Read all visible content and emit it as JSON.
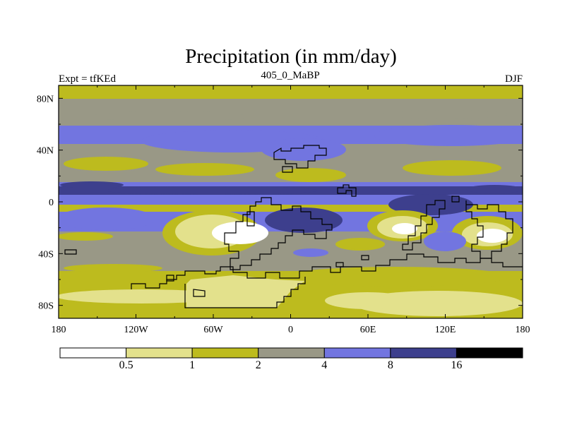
{
  "chart_data": {
    "type": "heatmap",
    "title": "Precipitation (in mm/day)",
    "left_label": "Expt = tfKEd",
    "center_label": "405_0_MaBP",
    "right_label": "DJF",
    "x_axis": {
      "range": [
        -180,
        180
      ],
      "ticks": [
        -180,
        -120,
        -60,
        0,
        60,
        120,
        180
      ],
      "tick_labels": [
        "180",
        "120W",
        "60W",
        "0",
        "60E",
        "120E",
        "180"
      ]
    },
    "y_axis": {
      "range": [
        -90,
        90
      ],
      "ticks": [
        80,
        40,
        0,
        -40,
        -80
      ],
      "tick_labels": [
        "80N",
        "40N",
        "0",
        "40S",
        "80S"
      ]
    },
    "color_scale": {
      "levels": [
        "0.5",
        "1",
        "2",
        "4",
        "8",
        "16"
      ],
      "colors": [
        "#ffffff",
        "#e3e18c",
        "#bdbb1e",
        "#999886",
        "#7275e0",
        "#3d3f8d",
        "#000000"
      ]
    }
  }
}
